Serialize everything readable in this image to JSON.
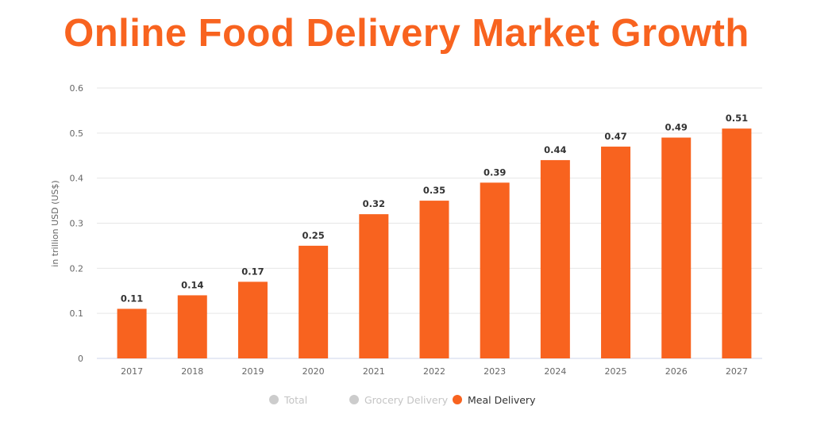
{
  "chart_data": {
    "type": "bar",
    "title": "Online Food Delivery Market Growth",
    "ylabel": "in trillion USD (US$)",
    "xlabel": "",
    "categories": [
      "2017",
      "2018",
      "2019",
      "2020",
      "2021",
      "2022",
      "2023",
      "2024",
      "2025",
      "2026",
      "2027"
    ],
    "series": [
      {
        "name": "Meal Delivery",
        "values": [
          0.11,
          0.14,
          0.17,
          0.25,
          0.32,
          0.35,
          0.39,
          0.44,
          0.47,
          0.49,
          0.51
        ]
      }
    ],
    "data_labels": [
      "0.11",
      "0.14",
      "0.17",
      "0.25",
      "0.32",
      "0.35",
      "0.39",
      "0.44",
      "0.47",
      "0.49",
      "0.51"
    ],
    "ylim": [
      0,
      0.6
    ],
    "yticks": [
      "0",
      "0.1",
      "0.2",
      "0.3",
      "0.4",
      "0.5",
      "0.6"
    ],
    "grid": true,
    "legend": {
      "placement": "bottom",
      "items": [
        {
          "label": "Total",
          "color": "#cccccc",
          "active": false
        },
        {
          "label": "Grocery Delivery",
          "color": "#cccccc",
          "active": false
        },
        {
          "label": "Meal Delivery",
          "color": "#f8631f",
          "active": true
        }
      ]
    },
    "colors": {
      "bar": "#f8631f",
      "title": "#f8631f"
    }
  }
}
